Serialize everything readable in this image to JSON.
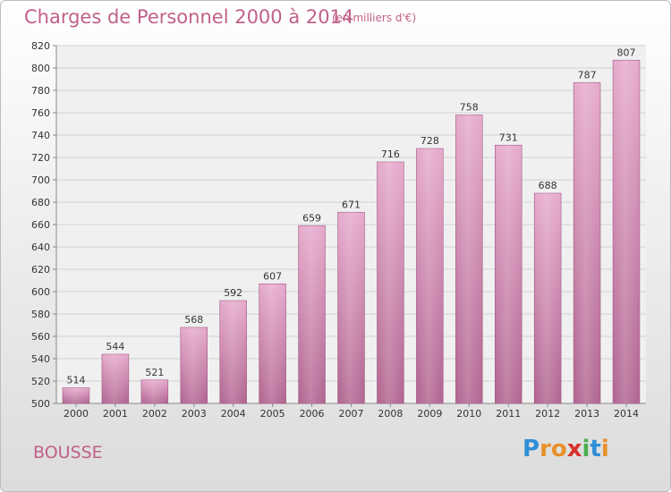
{
  "header": {
    "title": "Charges de Personnel 2000 à 2014",
    "subtitle": "(en milliers d'€)"
  },
  "footer": {
    "place": "BOUSSE",
    "logo_text": "Proxiti"
  },
  "colors": {
    "text_accent": "#c0608a",
    "bar_top": "#e6a9cc",
    "bar_bottom": "#b0648f"
  },
  "chart_data": {
    "type": "bar",
    "title": "Charges de Personnel 2000 à 2014",
    "subtitle": "(en milliers d'€)",
    "categories": [
      "2000",
      "2001",
      "2002",
      "2003",
      "2004",
      "2005",
      "2006",
      "2007",
      "2008",
      "2009",
      "2010",
      "2011",
      "2012",
      "2013",
      "2014"
    ],
    "values": [
      514,
      544,
      521,
      568,
      592,
      607,
      659,
      671,
      716,
      728,
      758,
      731,
      688,
      787,
      807
    ],
    "ylim": [
      500,
      820
    ],
    "ytick_step": 20,
    "grid": true,
    "legend": "none",
    "data_labels": true
  }
}
